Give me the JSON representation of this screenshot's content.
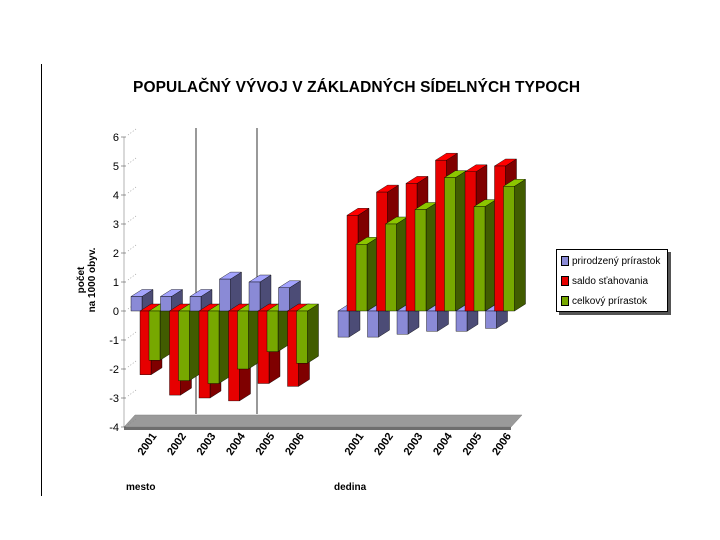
{
  "chart_data": {
    "type": "bar",
    "title": "POPULAČNÝ VÝVOJ V ZÁKLADNÝCH SÍDELNÝCH TYPOCH",
    "ylabel": [
      "počet",
      "na 1000 obyv."
    ],
    "ylim": [
      -4,
      6
    ],
    "yticks": [
      "6",
      "5",
      "4",
      "3",
      "2",
      "1",
      "0",
      "-1",
      "-2",
      "-3",
      "-4"
    ],
    "yticks_values": [
      6,
      5,
      4,
      3,
      2,
      1,
      0,
      -1,
      -2,
      -3,
      -4
    ],
    "groups": [
      {
        "label": "mesto",
        "categories": [
          "2001",
          "2002",
          "2003",
          "2004",
          "2005",
          "2006"
        ]
      },
      {
        "label": "dedina",
        "categories": [
          "2001",
          "2002",
          "2003",
          "2004",
          "2005",
          "2006"
        ]
      }
    ],
    "series": [
      {
        "name": "prirodzený prírastok",
        "color": "#8a8ad6",
        "values": [
          0.5,
          0.5,
          0.5,
          1.1,
          1.0,
          0.8,
          -0.9,
          -0.9,
          -0.8,
          -0.7,
          -0.7,
          -0.6
        ]
      },
      {
        "name": "saldo sťahovania",
        "color": "#e60000",
        "values": [
          -2.2,
          -2.9,
          -3.0,
          -3.1,
          -2.5,
          -2.6,
          3.3,
          4.1,
          4.4,
          5.2,
          4.8,
          5.0
        ]
      },
      {
        "name": "celkový prírastok",
        "color": "#77a800",
        "values": [
          -1.7,
          -2.4,
          -2.5,
          -2.0,
          -1.4,
          -1.8,
          2.3,
          3.0,
          3.5,
          4.6,
          3.6,
          4.3
        ]
      }
    ],
    "legend_position": "right",
    "grid": false
  }
}
